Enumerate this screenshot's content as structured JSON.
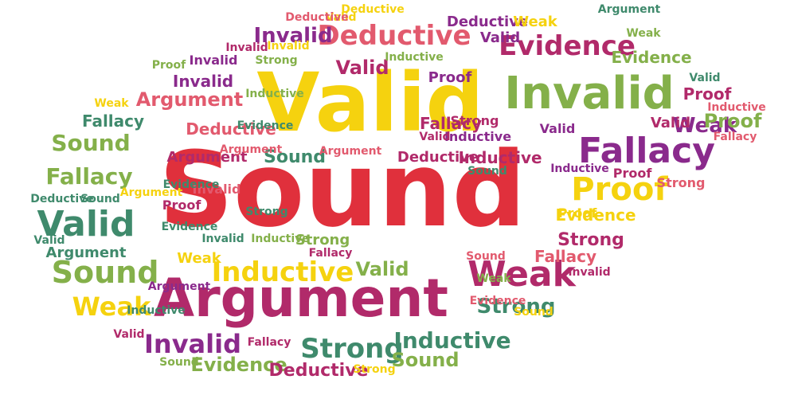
{
  "palette": {
    "red": "#e0303c",
    "yellow": "#f5d20f",
    "purple": "#8a2a8c",
    "magenta": "#b12a6a",
    "green": "#84b04a",
    "teal": "#3f8a6c",
    "pink": "#e25a6e"
  },
  "words": [
    {
      "text": "Sound",
      "color": "red"
    },
    {
      "text": "Valid",
      "color": "yellow"
    },
    {
      "text": "Argument",
      "color": "magenta"
    },
    {
      "text": "Invalid",
      "color": "green"
    },
    {
      "text": "Fallacy",
      "color": "purple"
    },
    {
      "text": "Deductive",
      "color": "pink"
    },
    {
      "text": "Evidence",
      "color": "magenta"
    },
    {
      "text": "Proof",
      "color": "yellow"
    },
    {
      "text": "Weak",
      "color": "magenta"
    },
    {
      "text": "Inductive",
      "color": "yellow"
    },
    {
      "text": "Strong",
      "color": "teal"
    },
    {
      "text": "Valid",
      "color": "teal"
    },
    {
      "text": "Sound",
      "color": "green"
    },
    {
      "text": "Weak",
      "color": "yellow"
    },
    {
      "text": "Fallacy",
      "color": "green"
    },
    {
      "text": "Sound",
      "color": "green"
    },
    {
      "text": "Invalid",
      "color": "purple"
    },
    {
      "text": "Strong",
      "color": "teal"
    },
    {
      "text": "Inductive",
      "color": "teal"
    },
    {
      "text": "Sound",
      "color": "green"
    },
    {
      "text": "Evidence",
      "color": "green"
    },
    {
      "text": "Deductive",
      "color": "magenta"
    },
    {
      "text": "Invalid",
      "color": "purple"
    },
    {
      "text": "Argument",
      "color": "pink"
    },
    {
      "text": "Weak",
      "color": "purple"
    },
    {
      "text": "Deductive",
      "color": "pink"
    },
    {
      "text": "Valid",
      "color": "magenta"
    },
    {
      "text": "Evidence",
      "color": "green"
    },
    {
      "text": "Weak",
      "color": "green"
    },
    {
      "text": "Invalid",
      "color": "purple"
    },
    {
      "text": "Proof",
      "color": "magenta"
    },
    {
      "text": "Proof",
      "color": "green"
    },
    {
      "text": "Valid",
      "color": "teal"
    },
    {
      "text": "Fallacy",
      "color": "pink"
    },
    {
      "text": "Valid",
      "color": "purple"
    },
    {
      "text": "Fallacy",
      "color": "teal"
    },
    {
      "text": "Strong",
      "color": "magenta"
    },
    {
      "text": "Proof",
      "color": "magenta"
    },
    {
      "text": "Invalid",
      "color": "pink"
    },
    {
      "text": "Argument",
      "color": "magenta"
    },
    {
      "text": "Sound",
      "color": "teal"
    },
    {
      "text": "Deductive",
      "color": "magenta"
    },
    {
      "text": "Inductive",
      "color": "magenta"
    },
    {
      "text": "Sound",
      "color": "teal"
    },
    {
      "text": "Inductive",
      "color": "purple"
    },
    {
      "text": "Valid",
      "color": "magenta"
    },
    {
      "text": "Fallacy",
      "color": "magenta"
    },
    {
      "text": "Strong",
      "color": "magenta"
    },
    {
      "text": "Evidence",
      "color": "yellow"
    },
    {
      "text": "Valid",
      "color": "green"
    },
    {
      "text": "Inductive",
      "color": "green"
    },
    {
      "text": "Strong",
      "color": "green"
    },
    {
      "text": "Fallacy",
      "color": "magenta"
    },
    {
      "text": "Invalid",
      "color": "teal"
    },
    {
      "text": "Argument",
      "color": "teal"
    },
    {
      "text": "Weak",
      "color": "yellow"
    },
    {
      "text": "Deductive",
      "color": "purple"
    },
    {
      "text": "Valid",
      "color": "purple"
    },
    {
      "text": "Weak",
      "color": "yellow"
    },
    {
      "text": "Proof",
      "color": "purple"
    },
    {
      "text": "Strong",
      "color": "pink"
    },
    {
      "text": "Valid",
      "color": "magenta"
    },
    {
      "text": "Proof",
      "color": "magenta"
    },
    {
      "text": "Inductive",
      "color": "purple"
    },
    {
      "text": "Proof",
      "color": "yellow"
    },
    {
      "text": "Valid",
      "color": "yellow"
    },
    {
      "text": "Argument",
      "color": "pink"
    },
    {
      "text": "Sound",
      "color": "pink"
    },
    {
      "text": "Invalid",
      "color": "magenta"
    },
    {
      "text": "Evidence",
      "color": "pink"
    },
    {
      "text": "Sound",
      "color": "yellow"
    },
    {
      "text": "Evidence",
      "color": "teal"
    },
    {
      "text": "Inductive",
      "color": "green"
    },
    {
      "text": "Weak",
      "color": "yellow"
    },
    {
      "text": "Deductive",
      "color": "teal"
    },
    {
      "text": "Sound",
      "color": "teal"
    },
    {
      "text": "Strong",
      "color": "teal"
    },
    {
      "text": "Valid",
      "color": "teal"
    },
    {
      "text": "Deductive",
      "color": "pink"
    },
    {
      "text": "Invalid",
      "color": "purple"
    },
    {
      "text": "Strong",
      "color": "green"
    },
    {
      "text": "Argument",
      "color": "pink"
    },
    {
      "text": "Evidence",
      "color": "teal"
    },
    {
      "text": "Fallacy",
      "color": "pink"
    },
    {
      "text": "Inductive",
      "color": "pink"
    },
    {
      "text": "Argument",
      "color": "teal"
    },
    {
      "text": "Deductive",
      "color": "yellow"
    },
    {
      "text": "Argument",
      "color": "purple"
    },
    {
      "text": "Inductive",
      "color": "teal"
    },
    {
      "text": "Argument",
      "color": "yellow"
    },
    {
      "text": "Sound",
      "color": "green"
    },
    {
      "text": "Weak",
      "color": "green"
    },
    {
      "text": "Fallacy",
      "color": "magenta"
    },
    {
      "text": "Proof",
      "color": "green"
    },
    {
      "text": "Invalid",
      "color": "yellow"
    },
    {
      "text": "Valid",
      "color": "magenta"
    },
    {
      "text": "Strong",
      "color": "yellow"
    },
    {
      "text": "Evidence",
      "color": "teal"
    },
    {
      "text": "Inductive",
      "color": "green"
    },
    {
      "text": "Invalid",
      "color": "magenta"
    }
  ]
}
